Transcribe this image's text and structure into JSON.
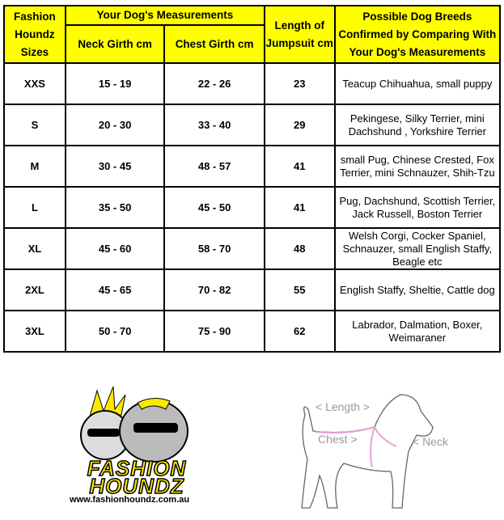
{
  "table": {
    "headers": {
      "sizes": "Fashion Houndz Sizes",
      "measurements": "Your Dog's Measurements",
      "neck": "Neck Girth cm",
      "chest": "Chest Girth cm",
      "length": "Length of Jumpsuit cm",
      "breeds": "Possible Dog Breeds Confirmed by Comparing With Your Dog's Measurements"
    },
    "rows": [
      {
        "size": "XXS",
        "neck": "15 - 19",
        "chest": "22 - 26",
        "length": "23",
        "breeds": "Teacup Chihuahua, small puppy"
      },
      {
        "size": "S",
        "neck": "20 - 30",
        "chest": "33 - 40",
        "length": "29",
        "breeds": "Pekingese, Silky Terrier, mini Dachshund , Yorkshire Terrier"
      },
      {
        "size": "M",
        "neck": "30 - 45",
        "chest": "48 - 57",
        "length": "41",
        "breeds": "small Pug, Chinese Crested, Fox Terrier, mini Schnauzer, Shih-Tzu"
      },
      {
        "size": "L",
        "neck": "35 - 50",
        "chest": "45 - 50",
        "length": "41",
        "breeds": "Pug, Dachshund, Scottish Terrier, Jack Russell, Boston Terrier"
      },
      {
        "size": "XL",
        "neck": "45 - 60",
        "chest": "58 - 70",
        "length": "48",
        "breeds": "Welsh Corgi, Cocker Spaniel, Schnauzer, small English Staffy, Beagle etc"
      },
      {
        "size": "2XL",
        "neck": "45 - 65",
        "chest": "70 - 82",
        "length": "55",
        "breeds": "English Staffy, Sheltie, Cattle dog"
      },
      {
        "size": "3XL",
        "neck": "50 - 70",
        "chest": "75 - 90",
        "length": "62",
        "breeds": "Labrador, Dalmation, Boxer, Weimaraner"
      }
    ]
  },
  "logo": {
    "brand": "FASHION HOUNDZ",
    "url": "www.fashionhoundz.com.au"
  },
  "diagram": {
    "length": "< Length >",
    "chest": "Chest >",
    "neck": "< Neck"
  },
  "colors": {
    "header": "#ffff00",
    "measure_line": "#e9a0d0"
  }
}
